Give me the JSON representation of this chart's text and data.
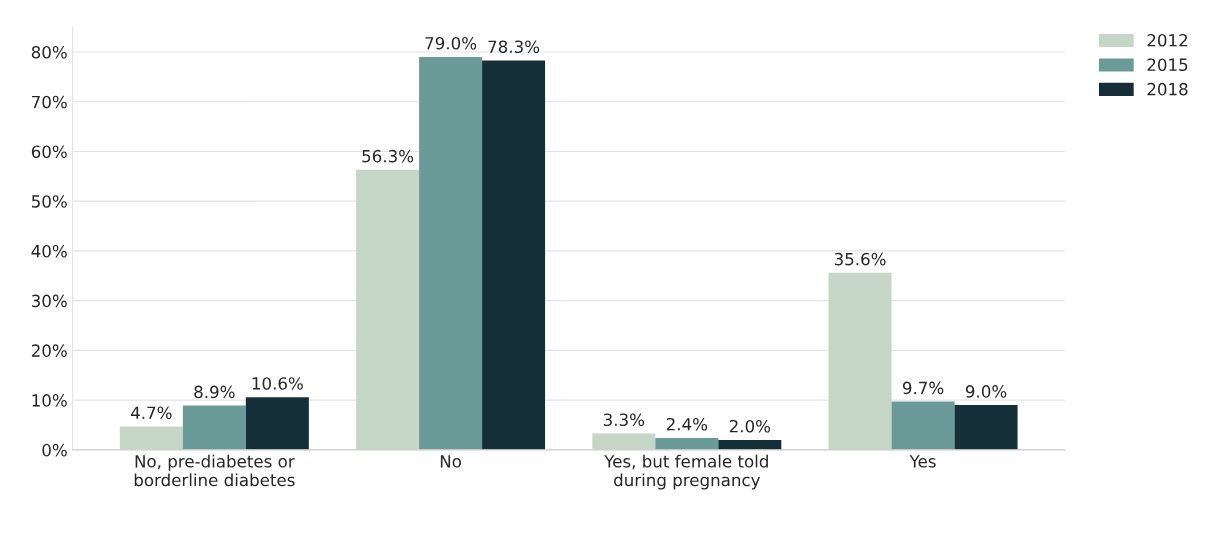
{
  "chart_data": {
    "type": "bar",
    "categories": [
      "No, pre-diabetes or\nborderline diabetes",
      "No",
      "Yes, but female told\nduring pregnancy",
      "Yes"
    ],
    "series": [
      {
        "name": "2012",
        "color": "#c5d6c6",
        "values": [
          4.7,
          56.3,
          3.3,
          35.6
        ],
        "value_labels": [
          "4.7%",
          "56.3%",
          "3.3%",
          "35.6%"
        ]
      },
      {
        "name": "2015",
        "color": "#6b9b99",
        "values": [
          8.9,
          79.0,
          2.4,
          9.7
        ],
        "value_labels": [
          "8.9%",
          "79.0%",
          "2.4%",
          "9.7%"
        ]
      },
      {
        "name": "2018",
        "color": "#142f38",
        "values": [
          10.6,
          78.3,
          2.0,
          9.0
        ],
        "value_labels": [
          "10.6%",
          "78.3%",
          "2.0%",
          "9.0%"
        ]
      }
    ],
    "ylim": [
      0,
      85
    ],
    "yticks": [
      {
        "value": 0,
        "label": "0%"
      },
      {
        "value": 10,
        "label": "10%"
      },
      {
        "value": 20,
        "label": "20%"
      },
      {
        "value": 30,
        "label": "30%"
      },
      {
        "value": 40,
        "label": "40%"
      },
      {
        "value": 50,
        "label": "50%"
      },
      {
        "value": 60,
        "label": "60%"
      },
      {
        "value": 70,
        "label": "70%"
      },
      {
        "value": 80,
        "label": "80%"
      }
    ],
    "grid": "y",
    "legend": "top right"
  }
}
